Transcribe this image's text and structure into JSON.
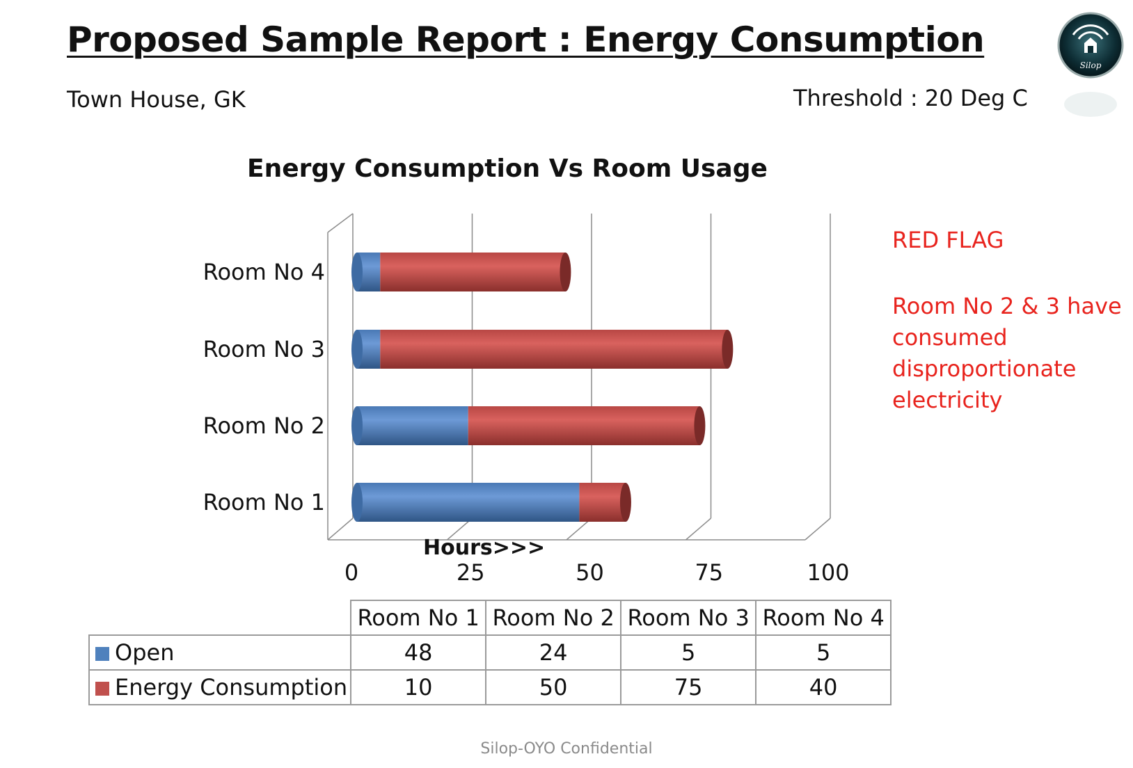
{
  "header": {
    "title": "Proposed Sample Report : Energy  Consumption",
    "subtitle": "Town House, GK",
    "threshold": "Threshold : 20 Deg C",
    "logo_text": "Silop"
  },
  "chart_data": {
    "type": "bar",
    "orientation": "horizontal",
    "stacked": true,
    "title": "Energy Consumption Vs Room Usage",
    "xlabel": "Hours>>>",
    "ylabel": "",
    "categories": [
      "Room No 1",
      "Room No 2",
      "Room No 3",
      "Room No 4"
    ],
    "series": [
      {
        "name": "Open",
        "values": [
          48,
          24,
          5,
          5
        ],
        "color": "#4f81bd"
      },
      {
        "name": "Energy Consumption",
        "values": [
          10,
          50,
          75,
          40
        ],
        "color": "#c0504d"
      }
    ],
    "xlim": [
      0,
      100
    ],
    "xticks": [
      0,
      25,
      50,
      75,
      100
    ],
    "grid": true
  },
  "annotation": {
    "title": "RED FLAG",
    "text": "Room No  2 & 3 have consumed disproportionate electricity"
  },
  "table": {
    "headers": [
      "Room No 1",
      "Room No 2",
      "Room No 3",
      "Room No 4"
    ],
    "rows": [
      {
        "label": "Open",
        "values": [
          "48",
          "24",
          "5",
          "5"
        ],
        "color": "#4f81bd"
      },
      {
        "label": "Energy Consumption",
        "values": [
          "10",
          "50",
          "75",
          "40"
        ],
        "color": "#c0504d"
      }
    ]
  },
  "footer": "Silop-OYO Confidential"
}
